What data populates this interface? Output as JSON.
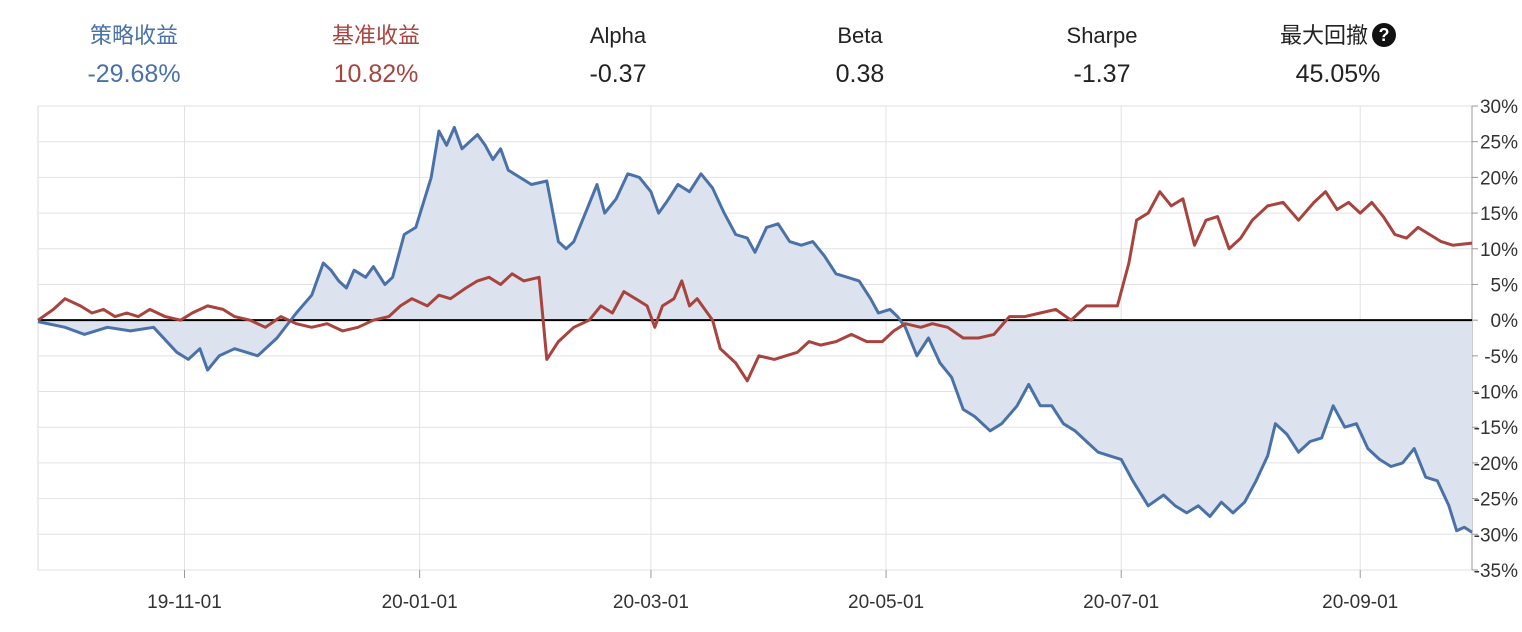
{
  "stats": [
    {
      "label": "策略收益",
      "value": "-29.68%",
      "color": "#4a72a8"
    },
    {
      "label": "基准收益",
      "value": "10.82%",
      "color": "#a8433e"
    },
    {
      "label": "Alpha",
      "value": "-0.37",
      "color": "#222222"
    },
    {
      "label": "Beta",
      "value": "0.38",
      "color": "#222222"
    },
    {
      "label": "Sharpe",
      "value": "-1.37",
      "color": "#222222"
    },
    {
      "label": "最大回撤",
      "value": "45.05%",
      "color": "#222222",
      "help_icon": "question-circle-icon"
    }
  ],
  "chart_data": {
    "type": "line",
    "x_axis": {
      "type": "date",
      "range": [
        "2019-09-24",
        "2020-09-30"
      ],
      "ticks": [
        {
          "date": "2019-11-01",
          "label": "19-11-01"
        },
        {
          "date": "2020-01-01",
          "label": "20-01-01"
        },
        {
          "date": "2020-03-01",
          "label": "20-03-01"
        },
        {
          "date": "2020-05-01",
          "label": "20-05-01"
        },
        {
          "date": "2020-07-01",
          "label": "20-07-01"
        },
        {
          "date": "2020-09-01",
          "label": "20-09-01"
        }
      ]
    },
    "y_axis": {
      "unit": "%",
      "range": [
        -35,
        30
      ],
      "position": "right",
      "ticks": [
        30,
        25,
        20,
        15,
        10,
        5,
        0,
        -5,
        -10,
        -15,
        -20,
        -25,
        -30,
        -35
      ],
      "tick_labels": [
        "30%",
        "25%",
        "20%",
        "15%",
        "10%",
        "5%",
        "0%",
        "-5%",
        "-10%",
        "-15%",
        "-20%",
        "-25%",
        "-30%",
        "-35%"
      ]
    },
    "grid": true,
    "zero_line": true,
    "series": [
      {
        "color": "#4a72a8",
        "fill": "#dce2ee",
        "points": [
          [
            "2019-09-24",
            -0.2
          ],
          [
            "2019-10-01",
            -1.0
          ],
          [
            "2019-10-06",
            -2.0
          ],
          [
            "2019-10-12",
            -1.0
          ],
          [
            "2019-10-18",
            -1.5
          ],
          [
            "2019-10-24",
            -1.0
          ],
          [
            "2019-10-30",
            -4.5
          ],
          [
            "2019-11-02",
            -5.5
          ],
          [
            "2019-11-05",
            -4.0
          ],
          [
            "2019-11-07",
            -7.0
          ],
          [
            "2019-11-10",
            -5.0
          ],
          [
            "2019-11-14",
            -4.0
          ],
          [
            "2019-11-20",
            -5.0
          ],
          [
            "2019-11-25",
            -2.5
          ],
          [
            "2019-11-30",
            1.0
          ],
          [
            "2019-12-04",
            3.5
          ],
          [
            "2019-12-07",
            8.0
          ],
          [
            "2019-12-09",
            7.0
          ],
          [
            "2019-12-11",
            5.5
          ],
          [
            "2019-12-13",
            4.5
          ],
          [
            "2019-12-15",
            7.0
          ],
          [
            "2019-12-18",
            6.0
          ],
          [
            "2019-12-20",
            7.5
          ],
          [
            "2019-12-23",
            5.0
          ],
          [
            "2019-12-25",
            6.0
          ],
          [
            "2019-12-28",
            12.0
          ],
          [
            "2019-12-31",
            13.0
          ],
          [
            "2020-01-04",
            20.0
          ],
          [
            "2020-01-06",
            26.5
          ],
          [
            "2020-01-08",
            24.5
          ],
          [
            "2020-01-10",
            27.0
          ],
          [
            "2020-01-12",
            24.0
          ],
          [
            "2020-01-14",
            25.0
          ],
          [
            "2020-01-16",
            26.0
          ],
          [
            "2020-01-18",
            24.5
          ],
          [
            "2020-01-20",
            22.5
          ],
          [
            "2020-01-22",
            24.0
          ],
          [
            "2020-01-24",
            21.0
          ],
          [
            "2020-01-27",
            20.0
          ],
          [
            "2020-01-30",
            19.0
          ],
          [
            "2020-02-03",
            19.5
          ],
          [
            "2020-02-06",
            11.0
          ],
          [
            "2020-02-08",
            10.0
          ],
          [
            "2020-02-10",
            11.0
          ],
          [
            "2020-02-13",
            15.0
          ],
          [
            "2020-02-16",
            19.0
          ],
          [
            "2020-02-18",
            15.0
          ],
          [
            "2020-02-21",
            17.0
          ],
          [
            "2020-02-24",
            20.5
          ],
          [
            "2020-02-27",
            20.0
          ],
          [
            "2020-03-01",
            18.0
          ],
          [
            "2020-03-03",
            15.0
          ],
          [
            "2020-03-05",
            16.5
          ],
          [
            "2020-03-08",
            19.0
          ],
          [
            "2020-03-11",
            18.0
          ],
          [
            "2020-03-14",
            20.5
          ],
          [
            "2020-03-17",
            18.5
          ],
          [
            "2020-03-20",
            15.0
          ],
          [
            "2020-03-23",
            12.0
          ],
          [
            "2020-03-26",
            11.5
          ],
          [
            "2020-03-28",
            9.5
          ],
          [
            "2020-03-31",
            13.0
          ],
          [
            "2020-04-03",
            13.5
          ],
          [
            "2020-04-06",
            11.0
          ],
          [
            "2020-04-09",
            10.5
          ],
          [
            "2020-04-12",
            11.0
          ],
          [
            "2020-04-15",
            9.0
          ],
          [
            "2020-04-18",
            6.5
          ],
          [
            "2020-04-21",
            6.0
          ],
          [
            "2020-04-24",
            5.5
          ],
          [
            "2020-04-27",
            3.0
          ],
          [
            "2020-04-29",
            1.0
          ],
          [
            "2020-05-02",
            1.5
          ],
          [
            "2020-05-04",
            0.5
          ],
          [
            "2020-05-06",
            -1.0
          ],
          [
            "2020-05-09",
            -5.0
          ],
          [
            "2020-05-12",
            -2.5
          ],
          [
            "2020-05-15",
            -6.0
          ],
          [
            "2020-05-18",
            -8.0
          ],
          [
            "2020-05-21",
            -12.5
          ],
          [
            "2020-05-24",
            -13.5
          ],
          [
            "2020-05-28",
            -15.5
          ],
          [
            "2020-05-31",
            -14.5
          ],
          [
            "2020-06-04",
            -12.0
          ],
          [
            "2020-06-07",
            -9.0
          ],
          [
            "2020-06-10",
            -12.0
          ],
          [
            "2020-06-13",
            -12.0
          ],
          [
            "2020-06-16",
            -14.5
          ],
          [
            "2020-06-19",
            -15.5
          ],
          [
            "2020-06-22",
            -17.0
          ],
          [
            "2020-06-25",
            -18.5
          ],
          [
            "2020-06-28",
            -19.0
          ],
          [
            "2020-07-01",
            -19.5
          ],
          [
            "2020-07-04",
            -22.5
          ],
          [
            "2020-07-08",
            -26.0
          ],
          [
            "2020-07-12",
            -24.5
          ],
          [
            "2020-07-15",
            -26.0
          ],
          [
            "2020-07-18",
            -27.0
          ],
          [
            "2020-07-21",
            -26.0
          ],
          [
            "2020-07-24",
            -27.5
          ],
          [
            "2020-07-27",
            -25.5
          ],
          [
            "2020-07-30",
            -27.0
          ],
          [
            "2020-08-02",
            -25.5
          ],
          [
            "2020-08-05",
            -22.5
          ],
          [
            "2020-08-08",
            -19.0
          ],
          [
            "2020-08-10",
            -14.5
          ],
          [
            "2020-08-13",
            -16.0
          ],
          [
            "2020-08-16",
            -18.5
          ],
          [
            "2020-08-19",
            -17.0
          ],
          [
            "2020-08-22",
            -16.5
          ],
          [
            "2020-08-25",
            -12.0
          ],
          [
            "2020-08-28",
            -15.0
          ],
          [
            "2020-08-31",
            -14.5
          ],
          [
            "2020-09-03",
            -18.0
          ],
          [
            "2020-09-06",
            -19.5
          ],
          [
            "2020-09-09",
            -20.5
          ],
          [
            "2020-09-12",
            -20.0
          ],
          [
            "2020-09-15",
            -18.0
          ],
          [
            "2020-09-18",
            -22.0
          ],
          [
            "2020-09-21",
            -22.5
          ],
          [
            "2020-09-24",
            -26.0
          ],
          [
            "2020-09-26",
            -29.5
          ],
          [
            "2020-09-28",
            -29.0
          ],
          [
            "2020-09-30",
            -29.7
          ]
        ]
      },
      {
        "color": "#a8433e",
        "points": [
          [
            "2019-09-24",
            0.0
          ],
          [
            "2019-09-28",
            1.5
          ],
          [
            "2019-10-01",
            3.0
          ],
          [
            "2019-10-05",
            2.0
          ],
          [
            "2019-10-08",
            1.0
          ],
          [
            "2019-10-11",
            1.5
          ],
          [
            "2019-10-14",
            0.5
          ],
          [
            "2019-10-17",
            1.0
          ],
          [
            "2019-10-20",
            0.5
          ],
          [
            "2019-10-23",
            1.5
          ],
          [
            "2019-10-27",
            0.5
          ],
          [
            "2019-10-31",
            0.0
          ],
          [
            "2019-11-03",
            1.0
          ],
          [
            "2019-11-07",
            2.0
          ],
          [
            "2019-11-11",
            1.5
          ],
          [
            "2019-11-14",
            0.5
          ],
          [
            "2019-11-18",
            0.0
          ],
          [
            "2019-11-22",
            -1.0
          ],
          [
            "2019-11-26",
            0.5
          ],
          [
            "2019-11-30",
            -0.5
          ],
          [
            "2019-12-04",
            -1.0
          ],
          [
            "2019-12-08",
            -0.5
          ],
          [
            "2019-12-12",
            -1.5
          ],
          [
            "2019-12-16",
            -1.0
          ],
          [
            "2019-12-20",
            0.0
          ],
          [
            "2019-12-24",
            0.5
          ],
          [
            "2019-12-27",
            2.0
          ],
          [
            "2019-12-30",
            3.0
          ],
          [
            "2020-01-03",
            2.0
          ],
          [
            "2020-01-06",
            3.5
          ],
          [
            "2020-01-09",
            3.0
          ],
          [
            "2020-01-13",
            4.5
          ],
          [
            "2020-01-16",
            5.5
          ],
          [
            "2020-01-19",
            6.0
          ],
          [
            "2020-01-22",
            5.0
          ],
          [
            "2020-01-25",
            6.5
          ],
          [
            "2020-01-28",
            5.5
          ],
          [
            "2020-02-01",
            6.0
          ],
          [
            "2020-02-03",
            -5.5
          ],
          [
            "2020-02-06",
            -3.0
          ],
          [
            "2020-02-10",
            -1.0
          ],
          [
            "2020-02-14",
            0.0
          ],
          [
            "2020-02-17",
            2.0
          ],
          [
            "2020-02-20",
            1.0
          ],
          [
            "2020-02-23",
            4.0
          ],
          [
            "2020-02-26",
            3.0
          ],
          [
            "2020-02-29",
            2.0
          ],
          [
            "2020-03-02",
            -1.0
          ],
          [
            "2020-03-04",
            2.0
          ],
          [
            "2020-03-07",
            3.0
          ],
          [
            "2020-03-09",
            5.5
          ],
          [
            "2020-03-11",
            2.0
          ],
          [
            "2020-03-13",
            3.0
          ],
          [
            "2020-03-17",
            0.0
          ],
          [
            "2020-03-19",
            -4.0
          ],
          [
            "2020-03-23",
            -6.0
          ],
          [
            "2020-03-26",
            -8.5
          ],
          [
            "2020-03-29",
            -5.0
          ],
          [
            "2020-04-02",
            -5.5
          ],
          [
            "2020-04-05",
            -5.0
          ],
          [
            "2020-04-08",
            -4.5
          ],
          [
            "2020-04-11",
            -3.0
          ],
          [
            "2020-04-14",
            -3.5
          ],
          [
            "2020-04-18",
            -3.0
          ],
          [
            "2020-04-22",
            -2.0
          ],
          [
            "2020-04-26",
            -3.0
          ],
          [
            "2020-04-30",
            -3.0
          ],
          [
            "2020-05-03",
            -1.5
          ],
          [
            "2020-05-06",
            -0.5
          ],
          [
            "2020-05-10",
            -1.0
          ],
          [
            "2020-05-13",
            -0.5
          ],
          [
            "2020-05-17",
            -1.0
          ],
          [
            "2020-05-21",
            -2.5
          ],
          [
            "2020-05-25",
            -2.5
          ],
          [
            "2020-05-29",
            -2.0
          ],
          [
            "2020-06-02",
            0.5
          ],
          [
            "2020-06-06",
            0.5
          ],
          [
            "2020-06-10",
            1.0
          ],
          [
            "2020-06-14",
            1.5
          ],
          [
            "2020-06-18",
            0.0
          ],
          [
            "2020-06-22",
            2.0
          ],
          [
            "2020-06-26",
            2.0
          ],
          [
            "2020-06-30",
            2.0
          ],
          [
            "2020-07-03",
            8.0
          ],
          [
            "2020-07-05",
            14.0
          ],
          [
            "2020-07-08",
            15.0
          ],
          [
            "2020-07-11",
            18.0
          ],
          [
            "2020-07-14",
            16.0
          ],
          [
            "2020-07-17",
            17.0
          ],
          [
            "2020-07-20",
            10.5
          ],
          [
            "2020-07-23",
            14.0
          ],
          [
            "2020-07-26",
            14.5
          ],
          [
            "2020-07-29",
            10.0
          ],
          [
            "2020-08-01",
            11.5
          ],
          [
            "2020-08-04",
            14.0
          ],
          [
            "2020-08-08",
            16.0
          ],
          [
            "2020-08-12",
            16.5
          ],
          [
            "2020-08-16",
            14.0
          ],
          [
            "2020-08-20",
            16.5
          ],
          [
            "2020-08-23",
            18.0
          ],
          [
            "2020-08-26",
            15.5
          ],
          [
            "2020-08-29",
            16.5
          ],
          [
            "2020-09-01",
            15.0
          ],
          [
            "2020-09-04",
            16.5
          ],
          [
            "2020-09-07",
            14.5
          ],
          [
            "2020-09-10",
            12.0
          ],
          [
            "2020-09-13",
            11.5
          ],
          [
            "2020-09-16",
            13.0
          ],
          [
            "2020-09-19",
            12.0
          ],
          [
            "2020-09-22",
            11.0
          ],
          [
            "2020-09-25",
            10.5
          ],
          [
            "2020-09-30",
            10.8
          ]
        ]
      }
    ]
  }
}
